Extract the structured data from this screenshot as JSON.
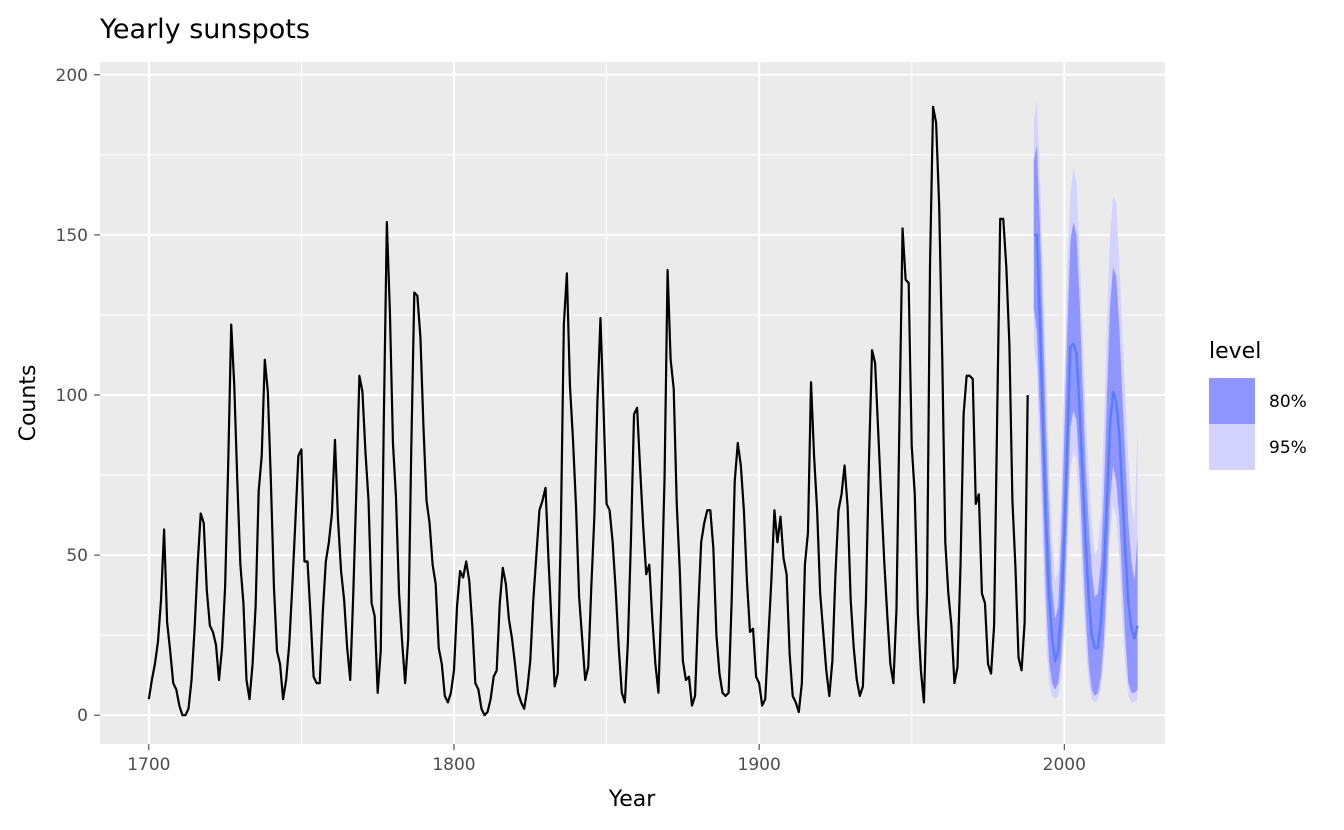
{
  "chart_data": {
    "type": "line",
    "title": "Yearly sunspots",
    "xlabel": "Year",
    "ylabel": "Counts",
    "xlim": [
      1684,
      2033
    ],
    "ylim": [
      -9,
      204
    ],
    "x_ticks": [
      1700,
      1800,
      1900,
      2000
    ],
    "x_tick_labels": [
      "1700",
      "1800",
      "1900",
      "2000"
    ],
    "y_ticks": [
      0,
      50,
      100,
      150,
      200
    ],
    "y_tick_labels": [
      "0",
      "50",
      "100",
      "150",
      "200"
    ],
    "grid": true,
    "colors": {
      "panel": "#ebebeb",
      "grid": "#ffffff",
      "series": "#000000",
      "forecast": "#5a7dff",
      "band80": "#8f96ff",
      "band95": "#d4d2ff"
    },
    "legend": {
      "title": "level",
      "placement": "right",
      "items": [
        {
          "label": "80%",
          "color": "#8f96ff"
        },
        {
          "label": "95%",
          "color": "#d4d2ff"
        }
      ]
    },
    "series": [
      {
        "x_start": 1700,
        "values": [
          5,
          11,
          16,
          23,
          36,
          58,
          29,
          20,
          10,
          8,
          3,
          0,
          0,
          2,
          11,
          27,
          47,
          63,
          60,
          39,
          28,
          26,
          22,
          11,
          21,
          40,
          78,
          122,
          103,
          73,
          47,
          35,
          11,
          5,
          16,
          34,
          70,
          81,
          111,
          101,
          73,
          40,
          20,
          16,
          5,
          11,
          22,
          40,
          60,
          81,
          83,
          48,
          48,
          31,
          12,
          10,
          10,
          32,
          48,
          54,
          63,
          86,
          61,
          45,
          36,
          21,
          11,
          38,
          70,
          106,
          101,
          82,
          67,
          35,
          31,
          7,
          20,
          92,
          154,
          126,
          85,
          68,
          38,
          23,
          10,
          24,
          83,
          132,
          131,
          118,
          90,
          67,
          60,
          47,
          41,
          21,
          16,
          6,
          4,
          7,
          14,
          34,
          45,
          43,
          48,
          42,
          28,
          10,
          8,
          2,
          0,
          1,
          5,
          12,
          14,
          35,
          46,
          41,
          30,
          24,
          16,
          7,
          4,
          2,
          8,
          17,
          36,
          50,
          64,
          67,
          71,
          48,
          28,
          9,
          13,
          57,
          122,
          138,
          103,
          86,
          65,
          37,
          24,
          11,
          15,
          40,
          62,
          98,
          124,
          96,
          66,
          64,
          54,
          39,
          21,
          7,
          4,
          23,
          55,
          94,
          96,
          77,
          59,
          44,
          47,
          30,
          16,
          7,
          37,
          74,
          139,
          111,
          102,
          66,
          45,
          17,
          11,
          12,
          3,
          6,
          32,
          54,
          60,
          64,
          64,
          52,
          25,
          13,
          7,
          6,
          7,
          36,
          73,
          85,
          78,
          64,
          42,
          26,
          27,
          12,
          10,
          3,
          5,
          24,
          42,
          64,
          54,
          62,
          49,
          44,
          19,
          6,
          4,
          1,
          10,
          47,
          57,
          104,
          81,
          64,
          38,
          26,
          14,
          6,
          17,
          44,
          64,
          69,
          78,
          65,
          36,
          21,
          11,
          6,
          9,
          36,
          80,
          114,
          110,
          89,
          68,
          48,
          31,
          16,
          10,
          33,
          93,
          152,
          136,
          135,
          84,
          69,
          32,
          14,
          4,
          38,
          141,
          190,
          185,
          159,
          112,
          54,
          38,
          28,
          10,
          15,
          47,
          94,
          106,
          106,
          105,
          66,
          69,
          38,
          35,
          16,
          13,
          28,
          93,
          155,
          155,
          140,
          116,
          67,
          46,
          18,
          14,
          29,
          100
        ]
      }
    ],
    "forecast": {
      "x_start": 1990,
      "mean": [
        150,
        150,
        123,
        92,
        61,
        38,
        24,
        17,
        20,
        33,
        56,
        86,
        115,
        116,
        113,
        96,
        75,
        54,
        37,
        25,
        21,
        21,
        29,
        45,
        67,
        91,
        101,
        98,
        88,
        70,
        51,
        35,
        27,
        24,
        28
      ],
      "lo80": [
        127,
        120,
        94,
        66,
        37,
        17,
        10,
        8,
        10,
        18,
        35,
        62,
        90,
        95,
        92,
        75,
        52,
        32,
        16,
        8,
        6,
        7,
        12,
        24,
        43,
        67,
        78,
        73,
        62,
        42,
        24,
        10,
        7,
        7,
        8
      ],
      "hi80": [
        173,
        178,
        153,
        122,
        90,
        62,
        40,
        30,
        34,
        55,
        87,
        120,
        148,
        154,
        150,
        130,
        102,
        78,
        60,
        45,
        37,
        38,
        48,
        70,
        100,
        128,
        140,
        137,
        122,
        100,
        80,
        60,
        48,
        42,
        56
      ],
      "lo95": [
        115,
        108,
        78,
        50,
        24,
        10,
        6,
        5,
        6,
        12,
        25,
        50,
        77,
        82,
        80,
        62,
        40,
        22,
        10,
        5,
        4,
        5,
        8,
        17,
        34,
        56,
        66,
        62,
        50,
        30,
        15,
        6,
        4,
        4,
        5
      ],
      "hi95": [
        185,
        192,
        168,
        140,
        110,
        78,
        55,
        42,
        45,
        70,
        105,
        140,
        163,
        171,
        166,
        145,
        120,
        95,
        76,
        60,
        50,
        52,
        63,
        90,
        122,
        150,
        162,
        160,
        142,
        120,
        100,
        80,
        66,
        60,
        90
      ]
    }
  }
}
